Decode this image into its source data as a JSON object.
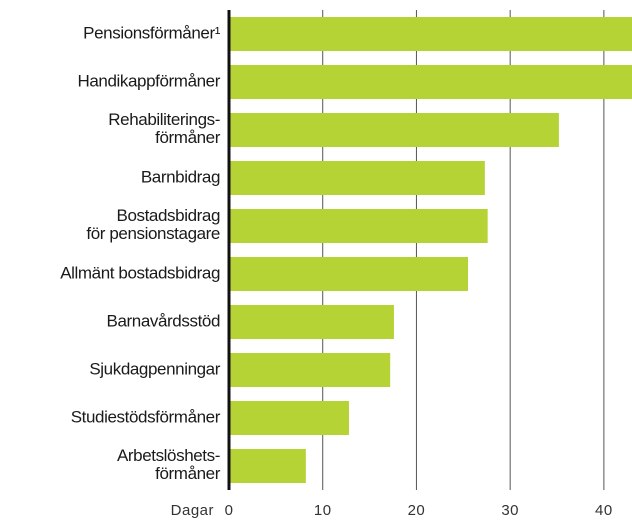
{
  "chart_data": {
    "type": "bar",
    "orientation": "horizontal",
    "categories": [
      "Pensionsförmåner¹",
      "Handikappförmåner",
      "Rehabiliterings-\nförmåner",
      "Barnbidrag",
      "Bostadsbidrag\nför pensionstagare",
      "Allmänt bostadsbidrag",
      "Barnavårdsstöd",
      "Sjukdagpenningar",
      "Studiestödsförmåner",
      "Arbetslöshets-\nförmåner"
    ],
    "values": [
      43,
      43,
      35.2,
      27.3,
      27.6,
      25.5,
      17.6,
      17.2,
      12.8,
      8.2
    ],
    "color": "#b5d335",
    "x_label": "Dagar",
    "xlim": [
      0,
      43
    ],
    "xticks": [
      0,
      10,
      20,
      30,
      40
    ],
    "grid": true
  }
}
